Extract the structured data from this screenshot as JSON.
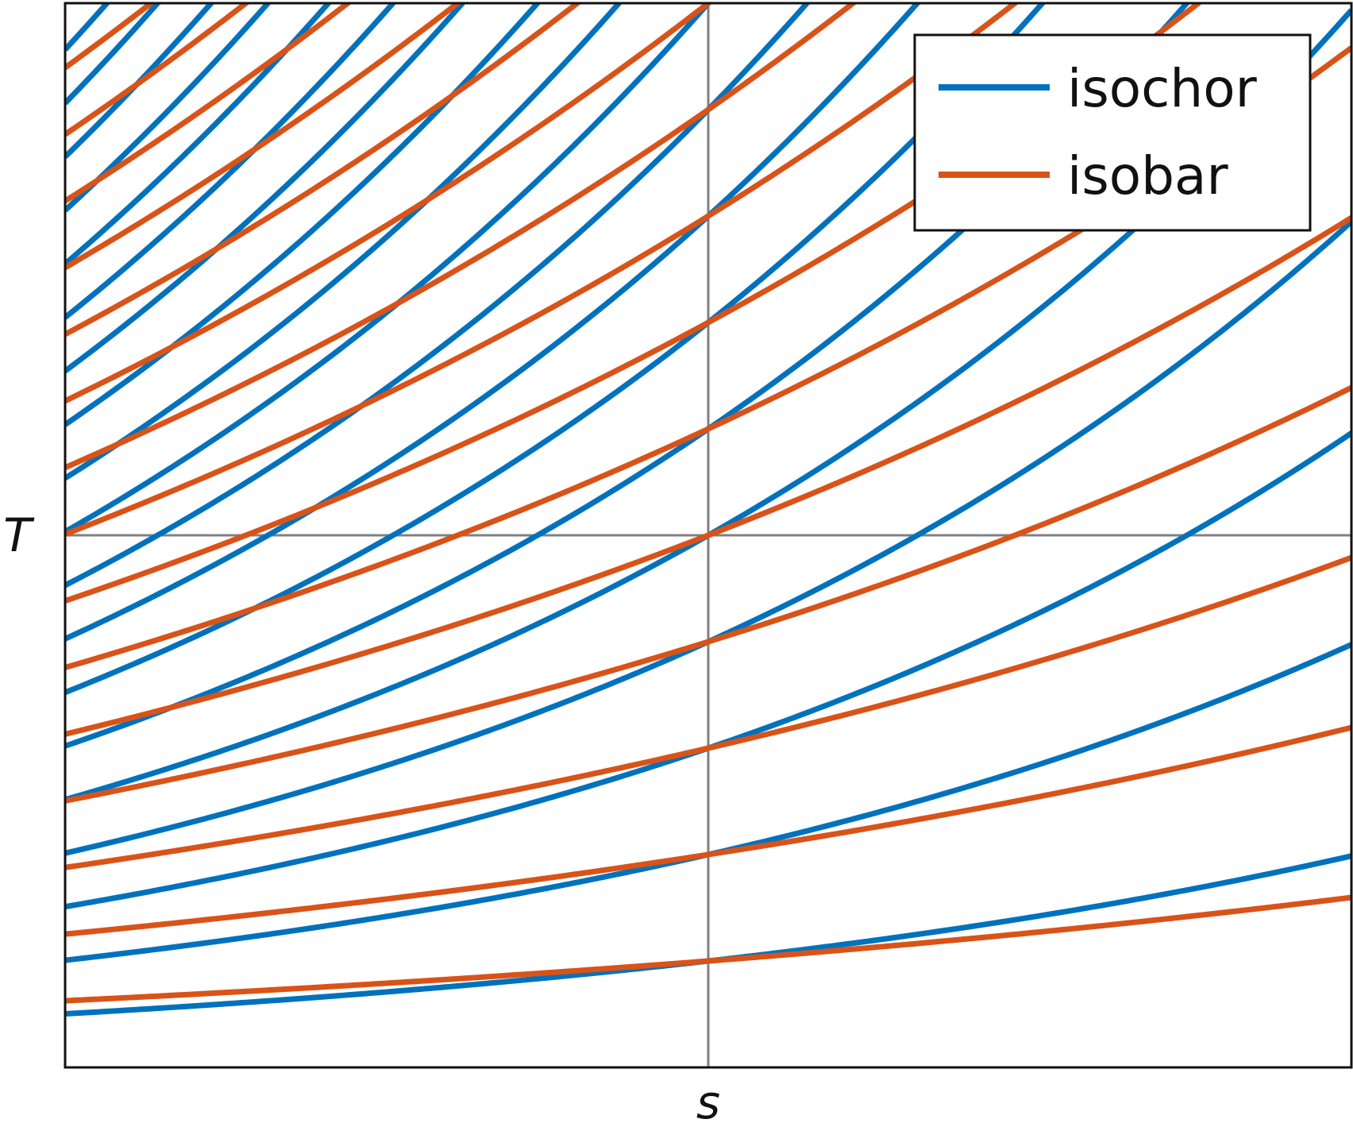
{
  "chart_data": {
    "type": "line",
    "title": "",
    "xlabel": "s",
    "ylabel": "T",
    "xlim": [
      -3,
      3
    ],
    "ylim": [
      0,
      3.6
    ],
    "grid": "single crosshair lines at s = 0 and T = 1.8",
    "legend": {
      "position": "top-right",
      "entries": [
        "isochor",
        "isobar"
      ]
    },
    "series": [
      {
        "name": "isochor",
        "color": "#0072bd",
        "model": "T = T0 * exp(s / 4.37)",
        "T_at_s0": [
          0.36,
          0.72,
          1.08,
          1.44,
          1.8,
          2.16,
          2.52,
          2.88,
          3.24,
          3.6,
          3.96,
          4.32,
          4.68,
          5.04,
          5.4,
          5.76,
          6.12,
          6.48,
          6.84,
          7.2
        ]
      },
      {
        "name": "isobar",
        "color": "#d95319",
        "model": "T = T0 * exp(s / 6.41)",
        "T_at_s0": [
          0.36,
          0.72,
          1.08,
          1.44,
          1.8,
          2.16,
          2.52,
          2.88,
          3.24,
          3.6,
          3.96,
          4.32,
          4.68,
          5.04,
          5.4,
          5.76,
          6.12,
          6.48,
          6.84,
          7.2
        ]
      }
    ]
  }
}
